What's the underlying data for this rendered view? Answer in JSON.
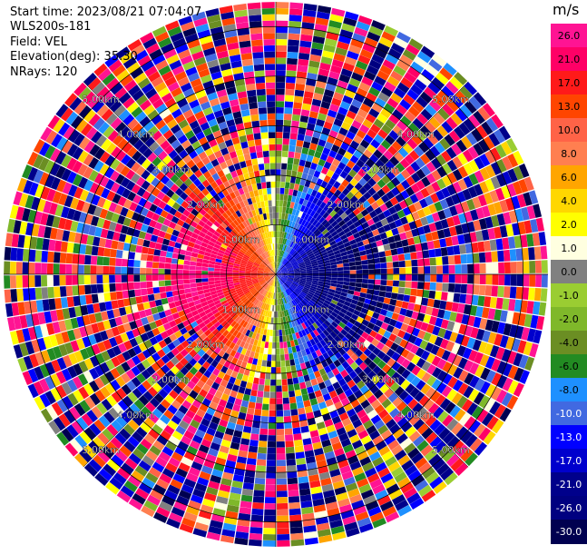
{
  "header": {
    "start_time": "Start time: 2023/08/21 07:04:07",
    "instrument": "WLS200s-181",
    "field": "Field: VEL",
    "elevation": "Elevation(deg): 35.30",
    "nrays": "NRays: 120"
  },
  "colorbar": {
    "unit": "m/s",
    "entries": [
      {
        "label": "26.0",
        "color": "#ff1493"
      },
      {
        "label": "21.0",
        "color": "#ff0066"
      },
      {
        "label": "17.0",
        "color": "#ff1a1a"
      },
      {
        "label": "13.0",
        "color": "#ff4500"
      },
      {
        "label": "10.0",
        "color": "#ff6347"
      },
      {
        "label": "8.0",
        "color": "#ff7f50"
      },
      {
        "label": "6.0",
        "color": "#ffa500"
      },
      {
        "label": "4.0",
        "color": "#ffd700"
      },
      {
        "label": "2.0",
        "color": "#ffff00"
      },
      {
        "label": "1.0",
        "color": "#ffffe0"
      },
      {
        "label": "0.0",
        "color": "#808080"
      },
      {
        "label": "-1.0",
        "color": "#9acd32"
      },
      {
        "label": "-2.0",
        "color": "#7fb82a"
      },
      {
        "label": "-4.0",
        "color": "#6b8e23"
      },
      {
        "label": "-6.0",
        "color": "#228b22"
      },
      {
        "label": "-8.0",
        "color": "#1e90ff"
      },
      {
        "label": "-10.0",
        "color": "#4169e1"
      },
      {
        "label": "-13.0",
        "color": "#0000ff"
      },
      {
        "label": "-17.0",
        "color": "#0000cd"
      },
      {
        "label": "-21.0",
        "color": "#00008b"
      },
      {
        "label": "-26.0",
        "color": "#000080"
      },
      {
        "label": "-30.0",
        "color": "#000050"
      }
    ]
  },
  "chart_data": {
    "type": "heatmap",
    "projection": "polar PPI",
    "field": "VEL",
    "unit": "m/s",
    "n_rays": 120,
    "range_ring_labels": [
      {
        "label": "1.00km",
        "range_km": 1.0
      },
      {
        "label": "2.00km",
        "range_km": 2.0
      },
      {
        "label": "3.00km",
        "range_km": 3.0
      },
      {
        "label": "4.00km",
        "range_km": 4.0
      },
      {
        "label": "5.00km",
        "range_km": 5.0
      }
    ],
    "max_range_km": 5.5,
    "velocity_pattern": {
      "positive_sector_azimuth_deg": [
        180,
        360
      ],
      "negative_sector_azimuth_deg": [
        0,
        180
      ],
      "inner_range_km": 1.8,
      "max_abs_velocity": 30.0
    },
    "color_scale": [
      "26.0",
      "21.0",
      "17.0",
      "13.0",
      "10.0",
      "8.0",
      "6.0",
      "4.0",
      "2.0",
      "1.0",
      "0.0",
      "-1.0",
      "-2.0",
      "-4.0",
      "-6.0",
      "-8.0",
      "-10.0",
      "-13.0",
      "-17.0",
      "-21.0",
      "-26.0",
      "-30.0"
    ]
  }
}
